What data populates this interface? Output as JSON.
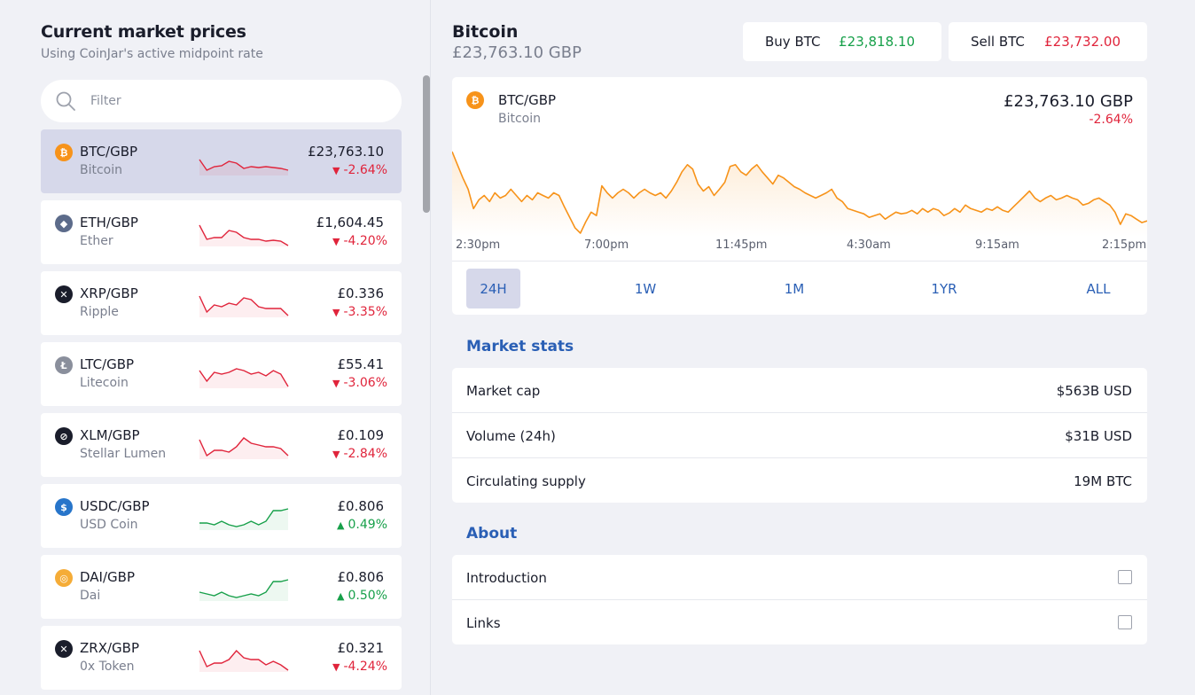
{
  "market_list": {
    "title": "Current market prices",
    "subtitle": "Using CoinJar's active midpoint rate",
    "filter_placeholder": "Filter",
    "items": [
      {
        "pair": "BTC/GBP",
        "name": "Bitcoin",
        "price": "£23,763.10",
        "change": "-2.64%",
        "direction": "down",
        "icon": "bitcoin-icon",
        "icon_color": "#f7931a",
        "icon_char": "₿",
        "spark": [
          18,
          30,
          26,
          25,
          20,
          22,
          28,
          26,
          27,
          26,
          27,
          28,
          30
        ]
      },
      {
        "pair": "ETH/GBP",
        "name": "Ether",
        "price": "£1,604.45",
        "change": "-4.20%",
        "direction": "down",
        "icon": "ether-icon",
        "icon_color": "#5c6b8a",
        "icon_char": "◆",
        "spark": [
          12,
          28,
          26,
          26,
          18,
          20,
          26,
          28,
          28,
          30,
          29,
          30,
          35
        ]
      },
      {
        "pair": "XRP/GBP",
        "name": "Ripple",
        "price": "£0.336",
        "change": "-3.35%",
        "direction": "down",
        "icon": "ripple-icon",
        "icon_color": "#1a1d2b",
        "icon_char": "✕",
        "spark": [
          12,
          30,
          22,
          24,
          20,
          22,
          14,
          16,
          24,
          26,
          26,
          26,
          34
        ]
      },
      {
        "pair": "LTC/GBP",
        "name": "Litecoin",
        "price": "£55.41",
        "change": "-3.06%",
        "direction": "down",
        "icon": "litecoin-icon",
        "icon_color": "#8a8f9c",
        "icon_char": "Ł",
        "spark": [
          16,
          28,
          18,
          20,
          18,
          14,
          16,
          20,
          18,
          22,
          16,
          20,
          34
        ]
      },
      {
        "pair": "XLM/GBP",
        "name": "Stellar Lumen",
        "price": "£0.109",
        "change": "-2.84%",
        "direction": "down",
        "icon": "stellar-icon",
        "icon_color": "#1a1d2b",
        "icon_char": "⊘",
        "spark": [
          14,
          32,
          26,
          26,
          28,
          22,
          12,
          18,
          20,
          22,
          22,
          24,
          32
        ]
      },
      {
        "pair": "USDC/GBP",
        "name": "USD Coin",
        "price": "£0.806",
        "change": "0.49%",
        "direction": "up",
        "icon": "usdc-icon",
        "icon_color": "#2775ca",
        "icon_char": "$",
        "spark": [
          28,
          28,
          30,
          26,
          30,
          32,
          30,
          26,
          30,
          26,
          14,
          14,
          12
        ]
      },
      {
        "pair": "DAI/GBP",
        "name": "Dai",
        "price": "£0.806",
        "change": "0.50%",
        "direction": "up",
        "icon": "dai-icon",
        "icon_color": "#f5ac37",
        "icon_char": "◎",
        "spark": [
          26,
          28,
          30,
          26,
          30,
          32,
          30,
          28,
          30,
          26,
          14,
          14,
          12
        ]
      },
      {
        "pair": "ZRX/GBP",
        "name": "0x Token",
        "price": "£0.321",
        "change": "-4.24%",
        "direction": "down",
        "icon": "zrx-icon",
        "icon_color": "#1a1d2b",
        "icon_char": "✕",
        "spark": [
          12,
          30,
          26,
          26,
          22,
          12,
          20,
          22,
          22,
          28,
          24,
          28,
          34
        ]
      }
    ]
  },
  "asset": {
    "title": "Bitcoin",
    "price_sub": "£23,763.10 GBP",
    "buy_label": "Buy BTC",
    "buy_value": "£23,818.10",
    "sell_label": "Sell BTC",
    "sell_value": "£23,732.00"
  },
  "chart": {
    "pair": "BTC/GBP",
    "name": "Bitcoin",
    "price": "£23,763.10 GBP",
    "change": "-2.64%",
    "line_color": "#f7931a",
    "x_ticks": [
      "2:30pm",
      "7:00pm",
      "11:45pm",
      "4:30am",
      "9:15am",
      "2:15pm"
    ],
    "ranges": [
      "24H",
      "1W",
      "1M",
      "1YR",
      "ALL"
    ],
    "active_range": "24H",
    "series": [
      5,
      20,
      35,
      48,
      70,
      60,
      55,
      62,
      52,
      58,
      55,
      48,
      55,
      62,
      55,
      60,
      52,
      55,
      58,
      52,
      55,
      68,
      80,
      92,
      98,
      85,
      74,
      78,
      44,
      52,
      58,
      52,
      48,
      52,
      58,
      52,
      48,
      52,
      55,
      52,
      58,
      50,
      40,
      28,
      20,
      25,
      42,
      50,
      45,
      55,
      48,
      40,
      22,
      20,
      28,
      32,
      25,
      20,
      28,
      35,
      42,
      32,
      35,
      40,
      45,
      48,
      52,
      55,
      58,
      55,
      52,
      48,
      58,
      62,
      70,
      72,
      74,
      76,
      80,
      78,
      76,
      82,
      78,
      74,
      76,
      75,
      72,
      76,
      70,
      74,
      70,
      72,
      78,
      75,
      70,
      74,
      66,
      70,
      72,
      74,
      70,
      72,
      68,
      72,
      74,
      68,
      62,
      56,
      50,
      58,
      62,
      58,
      55,
      60,
      58,
      55,
      58,
      60,
      66,
      64,
      60,
      58,
      62,
      66,
      74,
      88,
      76,
      78,
      82,
      86,
      84
    ]
  },
  "market_stats": {
    "title": "Market stats",
    "rows": [
      {
        "label": "Market cap",
        "value": "$563B USD"
      },
      {
        "label": "Volume (24h)",
        "value": "$31B USD"
      },
      {
        "label": "Circulating supply",
        "value": "19M BTC"
      }
    ]
  },
  "about": {
    "title": "About",
    "rows": [
      {
        "label": "Introduction"
      },
      {
        "label": "Links"
      }
    ]
  },
  "colors": {
    "negative": "#e0243b",
    "positive": "#17a04a",
    "accent": "#2a5fb5"
  }
}
